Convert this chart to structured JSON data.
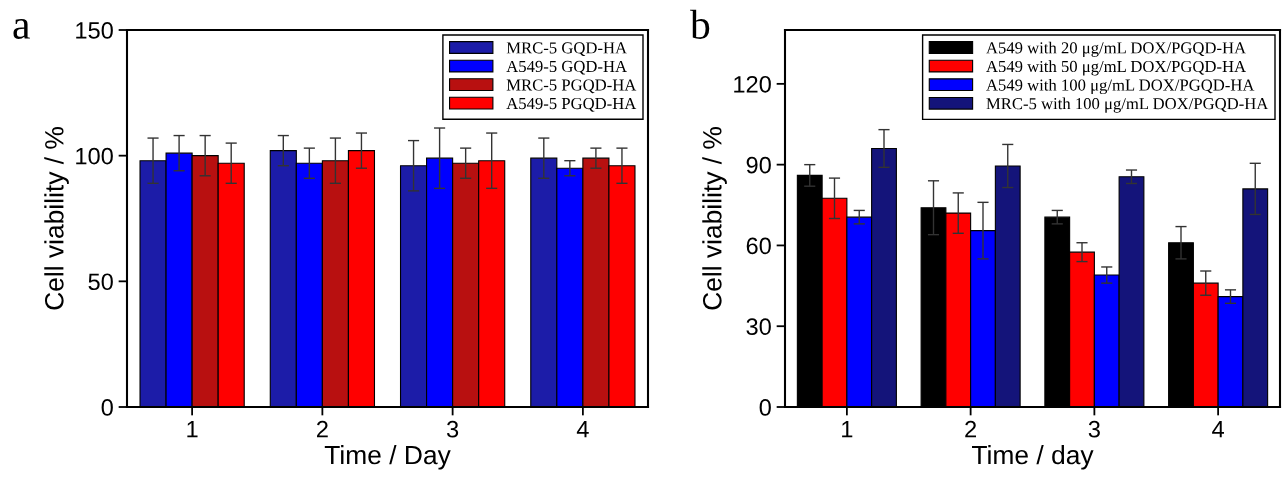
{
  "chart_data": [
    {
      "type": "bar",
      "annotations": [
        "a"
      ],
      "xlabel": "Time / Day",
      "ylabel": "Cell viability / %",
      "categories": [
        "1",
        "2",
        "3",
        "4"
      ],
      "ylim": [
        0,
        150
      ],
      "yticks": [
        0,
        50,
        100,
        150
      ],
      "legend": "top right",
      "grid": false,
      "series": [
        {
          "name": "MRC-5 GQD-HA",
          "color": "#1c1ca8",
          "values": [
            98,
            102,
            96,
            99
          ],
          "errors": [
            9,
            6,
            10,
            8
          ]
        },
        {
          "name": "A549-5 GQD-HA",
          "color": "#0000ff",
          "values": [
            101,
            97,
            99,
            95
          ],
          "errors": [
            7,
            6,
            12,
            3
          ]
        },
        {
          "name": "MRC-5 PGQD-HA",
          "color": "#b81010",
          "values": [
            100,
            98,
            97,
            99
          ],
          "errors": [
            8,
            9,
            6,
            4
          ]
        },
        {
          "name": "A549-5 PGQD-HA",
          "color": "#ff0000",
          "values": [
            97,
            102,
            98,
            96
          ],
          "errors": [
            8,
            7,
            11,
            7
          ]
        }
      ]
    },
    {
      "type": "bar",
      "annotations": [
        "b"
      ],
      "xlabel": "Time / day",
      "ylabel": "Cell viability / %",
      "categories": [
        "1",
        "2",
        "3",
        "4"
      ],
      "ylim": [
        0,
        140
      ],
      "yticks": [
        0,
        30,
        60,
        90,
        120
      ],
      "legend": "top right",
      "grid": false,
      "series": [
        {
          "name": "A549 with 20 μg/mL DOX/PGQD-HA",
          "color": "#000000",
          "values": [
            86,
            74,
            70.5,
            61
          ],
          "errors": [
            4,
            10,
            2.5,
            6
          ]
        },
        {
          "name": "A549 with 50 μg/mL DOX/PGQD-HA",
          "color": "#ff0000",
          "values": [
            77.5,
            72,
            57.5,
            46
          ],
          "errors": [
            7.5,
            7.5,
            3.5,
            4.5
          ]
        },
        {
          "name": "A549 with 100 μg/mL DOX/PGQD-HA",
          "color": "#0000ff",
          "values": [
            70.5,
            65.5,
            49,
            41
          ],
          "errors": [
            2.5,
            10.5,
            3,
            2.5
          ]
        },
        {
          "name": "MRC-5 with 100 μg/mL DOX/PGQD-HA",
          "color": "#14147a",
          "values": [
            96,
            89.5,
            85.5,
            81
          ],
          "errors": [
            7,
            8,
            2.5,
            9.5
          ]
        }
      ]
    }
  ]
}
